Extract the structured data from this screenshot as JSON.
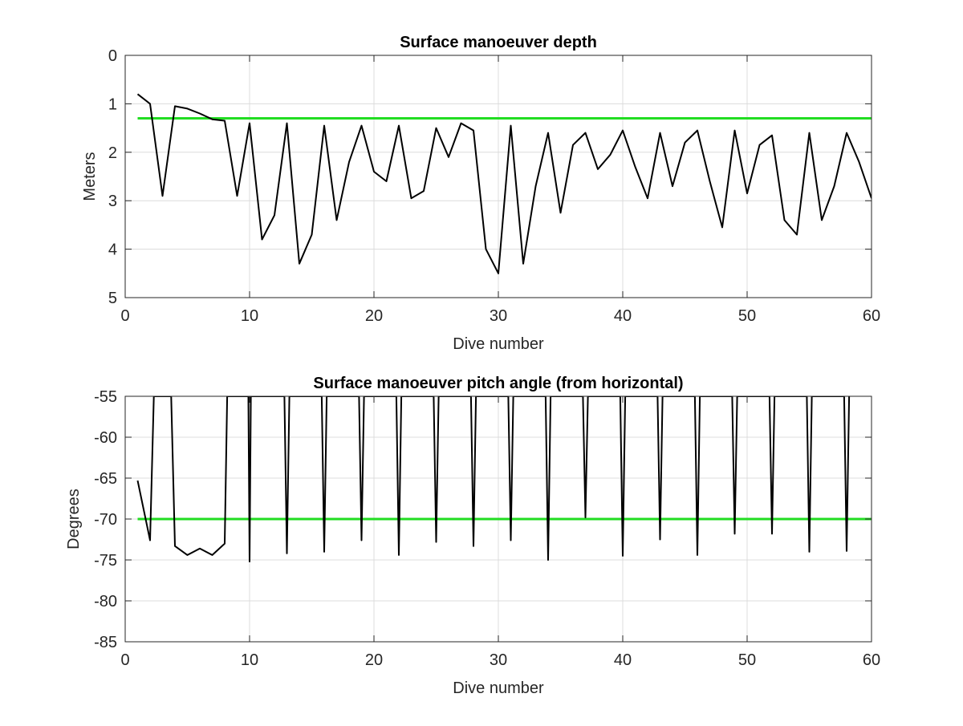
{
  "chart_data": [
    {
      "type": "line",
      "title": "Surface manoeuver depth",
      "xlabel": "Dive number",
      "ylabel": "Meters",
      "xlim": [
        0,
        60
      ],
      "ylim": [
        0,
        5
      ],
      "y_reversed": true,
      "grid": true,
      "xticks": [
        0,
        10,
        20,
        30,
        40,
        50,
        60
      ],
      "yticks": [
        0,
        1,
        2,
        3,
        4,
        5
      ],
      "series_color": "#000000",
      "x": [
        1,
        2,
        3,
        4,
        5,
        6,
        7,
        8,
        9,
        10,
        11,
        12,
        13,
        14,
        15,
        16,
        17,
        18,
        19,
        20,
        21,
        22,
        23,
        24,
        25,
        26,
        27,
        28,
        29,
        30,
        31,
        32,
        33,
        34,
        35,
        36,
        37,
        38,
        39,
        40,
        41,
        42,
        43,
        44,
        45,
        46,
        47,
        48,
        49,
        50,
        51,
        52,
        53,
        54,
        55,
        56,
        57,
        58,
        59,
        60
      ],
      "values": [
        0.8,
        1.0,
        2.9,
        1.05,
        1.1,
        1.2,
        1.32,
        1.35,
        2.9,
        1.4,
        3.8,
        3.3,
        1.4,
        4.3,
        3.7,
        1.45,
        3.4,
        2.2,
        1.45,
        2.4,
        2.6,
        1.45,
        2.95,
        2.8,
        1.5,
        2.1,
        1.4,
        1.55,
        4.0,
        4.5,
        1.45,
        4.3,
        2.7,
        1.6,
        3.25,
        1.85,
        1.6,
        2.35,
        2.05,
        1.55,
        2.3,
        2.95,
        1.6,
        2.7,
        1.8,
        1.55,
        2.6,
        3.55,
        1.55,
        2.85,
        1.85,
        1.65,
        3.4,
        3.7,
        1.6,
        3.4,
        2.7,
        1.6,
        2.2,
        2.95
      ],
      "reference_line": {
        "y": 1.3,
        "color": "#22dd22"
      }
    },
    {
      "type": "line",
      "title": "Surface manoeuver pitch angle (from horizontal)",
      "xlabel": "Dive number",
      "ylabel": "Degrees",
      "xlim": [
        0,
        60
      ],
      "ylim": [
        -85,
        -55
      ],
      "grid": true,
      "xticks": [
        0,
        10,
        20,
        30,
        40,
        50,
        60
      ],
      "yticks": [
        -55,
        -60,
        -65,
        -70,
        -75,
        -80,
        -85
      ],
      "series_color": "#000000",
      "x": [
        1,
        2,
        2.3,
        3.7,
        4,
        5,
        6,
        7,
        8,
        8.2,
        9.9,
        10,
        10.1,
        10.2,
        12.8,
        13,
        13.2,
        15.8,
        16,
        16.2,
        18.8,
        19,
        19.2,
        21.8,
        22,
        22.2,
        24.8,
        25,
        25.2,
        27.8,
        28,
        28.2,
        30.8,
        31,
        31.2,
        33.8,
        34,
        34.2,
        36.8,
        37,
        37.2,
        39.8,
        40,
        40.2,
        42.8,
        43,
        43.2,
        45.8,
        46,
        46.2,
        48.8,
        49,
        49.2,
        51.8,
        52,
        52.2,
        54.8,
        55,
        55.2,
        57.8,
        58,
        58.2
      ],
      "values": [
        -65.3,
        -72.6,
        -55,
        -55,
        -73.3,
        -74.4,
        -73.6,
        -74.4,
        -73.0,
        -55,
        -55,
        -75.2,
        -55,
        -55,
        -55,
        -74.2,
        -55,
        -55,
        -74.0,
        -55,
        -55,
        -72.6,
        -55,
        -55,
        -74.4,
        -55,
        -55,
        -72.8,
        -55,
        -55,
        -73.3,
        -55,
        -55,
        -72.6,
        -55,
        -55,
        -75.0,
        -55,
        -55,
        -69.8,
        -55,
        -55,
        -74.5,
        -55,
        -55,
        -72.5,
        -55,
        -55,
        -74.4,
        -55,
        -55,
        -71.8,
        -55,
        -55,
        -71.8,
        -55,
        -55,
        -74.0,
        -55,
        -55,
        -73.9,
        -55
      ],
      "reference_line": {
        "y": -70,
        "color": "#22dd22"
      }
    }
  ]
}
